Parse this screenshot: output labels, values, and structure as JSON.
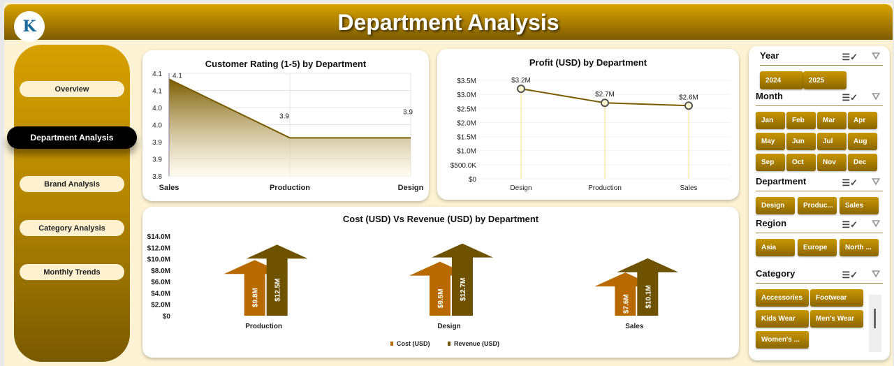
{
  "header": {
    "title": "Department Analysis",
    "logo_text": "K"
  },
  "nav": [
    {
      "label": "Overview"
    },
    {
      "label": "Department Analysis",
      "active": true
    },
    {
      "label": "Brand Analysis"
    },
    {
      "label": "Category Analysis"
    },
    {
      "label": "Monthly Trends"
    }
  ],
  "chart_data": [
    {
      "type": "area",
      "title": "Customer Rating (1-5) by Department",
      "categories": [
        "Sales",
        "Production",
        "Design"
      ],
      "values": [
        4.13,
        3.93,
        3.93
      ],
      "data_labels": [
        "4.1",
        "3.9",
        "3.9"
      ],
      "yticks": [
        "3.8",
        "3.9",
        "3.9",
        "4.0",
        "4.0",
        "4.1",
        "4.1"
      ],
      "ylim": [
        3.8,
        4.15
      ],
      "color": "#7a5c00"
    },
    {
      "type": "line",
      "title": "Profit (USD) by Department",
      "categories": [
        "Design",
        "Production",
        "Sales"
      ],
      "values": [
        3.2,
        2.7,
        2.6
      ],
      "data_labels": [
        "$3.2M",
        "$2.7M",
        "$2.6M"
      ],
      "yticks": [
        "$0",
        "$500.0K",
        "$1.0M",
        "$1.5M",
        "$2.0M",
        "$2.5M",
        "$3.0M",
        "$3.5M"
      ],
      "ylim": [
        0,
        3.5
      ],
      "color": "#7a5c00"
    },
    {
      "type": "bar",
      "title": "Cost (USD) Vs Revenue (USD) by Department",
      "categories": [
        "Production",
        "Design",
        "Sales"
      ],
      "series": [
        {
          "name": "Cost (USD)",
          "values": [
            9.8,
            9.5,
            7.6
          ],
          "labels": [
            "$9.8M",
            "$9.5M",
            "$7.6M"
          ],
          "color": "#b86a00"
        },
        {
          "name": "Revenue (USD)",
          "values": [
            12.5,
            12.7,
            10.1
          ],
          "labels": [
            "$12.5M",
            "$12.7M",
            "$10.1M"
          ],
          "color": "#6e5200"
        }
      ],
      "yticks": [
        "$0",
        "$2.0M",
        "$4.0M",
        "$6.0M",
        "$8.0M",
        "$10.0M",
        "$12.0M",
        "$14.0M"
      ],
      "ylim": [
        0,
        14
      ],
      "legend": "bottom"
    }
  ],
  "slicers": {
    "year": {
      "title": "Year",
      "items": [
        "2024",
        "2025"
      ]
    },
    "month": {
      "title": "Month",
      "items": [
        "Jan",
        "Feb",
        "Mar",
        "Apr",
        "May",
        "Jun",
        "Jul",
        "Aug",
        "Sep",
        "Oct",
        "Nov",
        "Dec"
      ]
    },
    "department": {
      "title": "Department",
      "items": [
        "Design",
        "Produc...",
        "Sales"
      ]
    },
    "region": {
      "title": "Region",
      "items": [
        "Asia",
        "Europe",
        "North ..."
      ]
    },
    "category": {
      "title": "Category",
      "items": [
        "Accessories",
        "Footwear",
        "Kids Wear",
        "Men's Wear",
        "Women's ..."
      ]
    }
  }
}
